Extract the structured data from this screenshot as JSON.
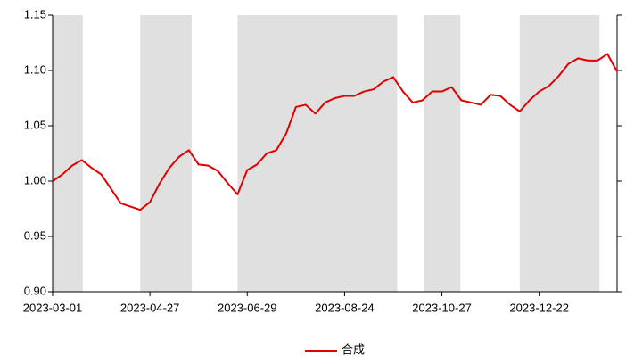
{
  "chart_data": {
    "type": "line",
    "categories": [
      "2023-03-01",
      null,
      null,
      null,
      null,
      null,
      null,
      null,
      null,
      null,
      "2023-04-27",
      null,
      null,
      null,
      null,
      null,
      null,
      null,
      null,
      null,
      "2023-06-29",
      null,
      null,
      null,
      null,
      null,
      null,
      null,
      null,
      null,
      "2023-08-24",
      null,
      null,
      null,
      null,
      null,
      null,
      null,
      null,
      null,
      "2023-10-27",
      null,
      null,
      null,
      null,
      null,
      null,
      null,
      null,
      null,
      "2023-12-22",
      null,
      null,
      null,
      null,
      null,
      null,
      null,
      null
    ],
    "series": [
      {
        "name": "合成",
        "color": "#e00000",
        "values": [
          1.0,
          1.006,
          1.014,
          1.019,
          1.012,
          1.006,
          0.993,
          0.98,
          0.977,
          0.974,
          0.981,
          0.998,
          1.012,
          1.022,
          1.028,
          1.015,
          1.014,
          1.009,
          0.998,
          0.988,
          1.01,
          1.015,
          1.025,
          1.028,
          1.043,
          1.067,
          1.069,
          1.061,
          1.071,
          1.075,
          1.077,
          1.077,
          1.081,
          1.083,
          1.09,
          1.094,
          1.081,
          1.071,
          1.073,
          1.081,
          1.081,
          1.085,
          1.073,
          1.071,
          1.069,
          1.078,
          1.077,
          1.069,
          1.063,
          1.073,
          1.081,
          1.086,
          1.095,
          1.106,
          1.111,
          1.109,
          1.109,
          1.115,
          1.099
        ]
      }
    ],
    "shaded_ranges": [
      [
        0,
        3.1
      ],
      [
        9,
        14.3
      ],
      [
        19,
        35.4
      ],
      [
        38.2,
        41.9
      ],
      [
        48,
        56.2
      ]
    ],
    "shade_color": "#e0e0e0",
    "ylim": [
      0.9,
      1.15
    ],
    "yticks": [
      {
        "value": 0.9,
        "label": "0.90"
      },
      0.95,
      {
        "value": 1.0,
        "label": "1.00"
      },
      1.05,
      {
        "value": 1.1,
        "label": "1.10"
      },
      1.15
    ],
    "legend": "bottom"
  }
}
